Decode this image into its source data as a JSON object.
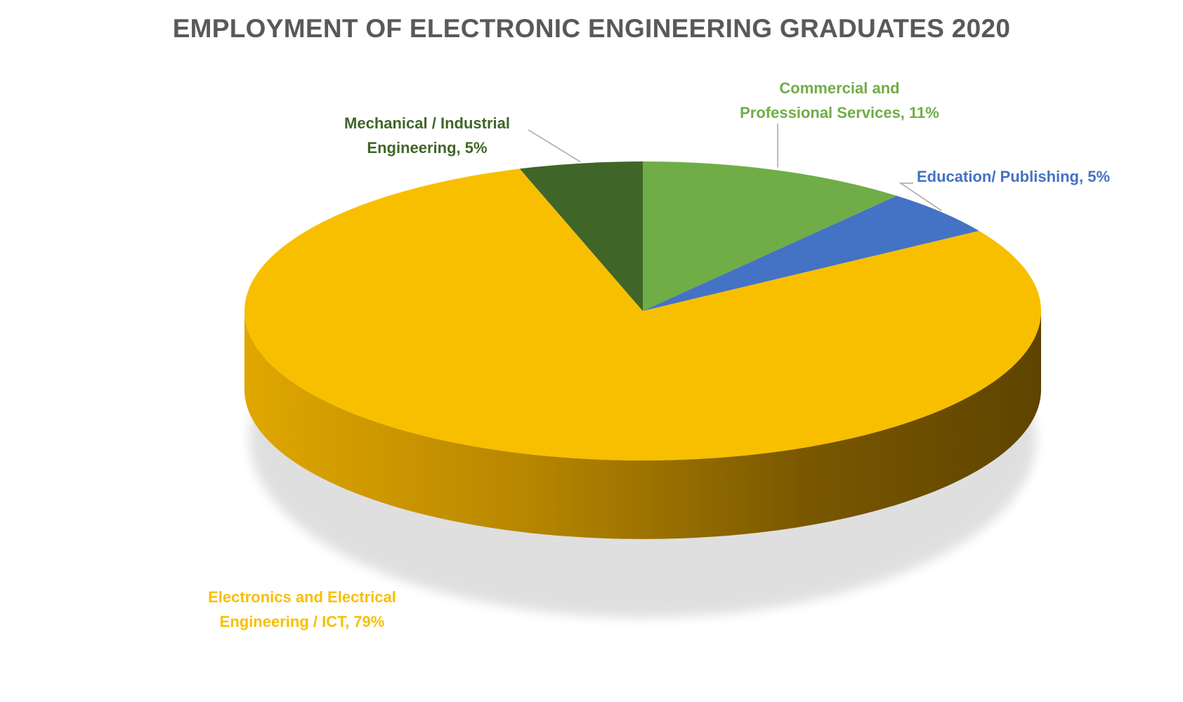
{
  "chart_data": {
    "type": "pie",
    "title": "EMPLOYMENT OF ELECTRONIC ENGINEERING GRADUATES 2020",
    "slices": [
      {
        "label": "Commercial and Professional Services",
        "value": 11,
        "value_label": "11%",
        "color": "#70ad47",
        "label_lines": [
          "Commercial and",
          "Professional Services, 11%"
        ]
      },
      {
        "label": "Education/ Publishing",
        "value": 5,
        "value_label": "5%",
        "color": "#4472c4",
        "label_lines": [
          "Education/ Publishing, 5%"
        ]
      },
      {
        "label": "Electronics and Electrical Engineering / ICT",
        "value": 79,
        "value_label": "79%",
        "color": "#f8bf00",
        "label_lines": [
          "Electronics and Electrical",
          "Engineering / ICT, 79%"
        ]
      },
      {
        "label": "Mechanical / Industrial Engineering",
        "value": 5,
        "value_label": "5%",
        "color": "#3f6628",
        "label_lines": [
          "Mechanical / Industrial",
          "Engineering, 5%"
        ]
      }
    ],
    "style": "3d-pie",
    "legend": "none"
  }
}
